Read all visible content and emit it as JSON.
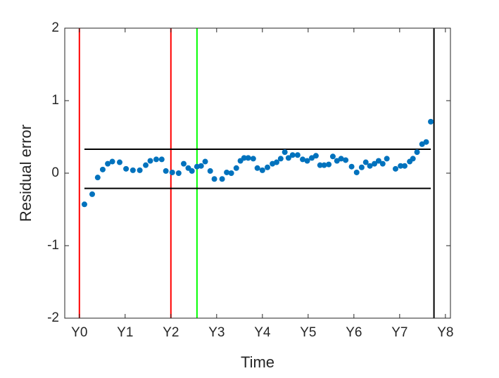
{
  "chart_data": {
    "type": "scatter",
    "xlabel": "Time",
    "ylabel": "Residual error",
    "color": "#0072bd",
    "xlim": [
      -0.32,
      8.11
    ],
    "ylim": [
      -2,
      2
    ],
    "yticks": [
      -2,
      -1,
      0,
      1,
      2
    ],
    "xticks": [
      {
        "value": 0,
        "label": "Y0"
      },
      {
        "value": 1,
        "label": "Y1"
      },
      {
        "value": 2,
        "label": "Y2"
      },
      {
        "value": 3,
        "label": "Y3"
      },
      {
        "value": 4,
        "label": "Y4"
      },
      {
        "value": 5,
        "label": "Y5"
      },
      {
        "value": 6,
        "label": "Y6"
      },
      {
        "value": 7,
        "label": "Y7"
      },
      {
        "value": 8,
        "label": "Y8"
      }
    ],
    "x": [
      0.11,
      0.28,
      0.4,
      0.51,
      0.62,
      0.72,
      0.88,
      1.02,
      1.17,
      1.32,
      1.45,
      1.55,
      1.68,
      1.8,
      1.89,
      2.03,
      2.17,
      2.28,
      2.38,
      2.46,
      2.57,
      2.66,
      2.75,
      2.86,
      2.95,
      3.12,
      3.22,
      3.32,
      3.43,
      3.52,
      3.6,
      3.69,
      3.8,
      3.89,
      4.0,
      4.11,
      4.22,
      4.31,
      4.4,
      4.49,
      4.57,
      4.66,
      4.77,
      4.88,
      4.98,
      5.08,
      5.17,
      5.26,
      5.35,
      5.45,
      5.54,
      5.63,
      5.72,
      5.82,
      5.95,
      6.06,
      6.17,
      6.26,
      6.35,
      6.45,
      6.54,
      6.63,
      6.72,
      6.91,
      7.02,
      7.11,
      7.22,
      7.29,
      7.38,
      7.49,
      7.58,
      7.68
    ],
    "values": [
      -0.43,
      -0.29,
      -0.06,
      0.05,
      0.13,
      0.16,
      0.15,
      0.06,
      0.04,
      0.04,
      0.11,
      0.17,
      0.19,
      0.19,
      0.03,
      0.01,
      0.0,
      0.13,
      0.07,
      0.03,
      0.09,
      0.1,
      0.16,
      0.03,
      -0.08,
      -0.08,
      0.01,
      0.0,
      0.07,
      0.17,
      0.21,
      0.21,
      0.2,
      0.07,
      0.04,
      0.08,
      0.13,
      0.15,
      0.2,
      0.29,
      0.21,
      0.25,
      0.25,
      0.19,
      0.17,
      0.21,
      0.24,
      0.11,
      0.11,
      0.12,
      0.23,
      0.17,
      0.2,
      0.18,
      0.09,
      0.01,
      0.08,
      0.15,
      0.1,
      0.13,
      0.17,
      0.13,
      0.2,
      0.06,
      0.1,
      0.1,
      0.16,
      0.2,
      0.29,
      0.4,
      0.43,
      0.71
    ],
    "vlines": [
      {
        "x": 0,
        "color": "#ff0000"
      },
      {
        "x": 2,
        "color": "#ff0000"
      },
      {
        "x": 2.57,
        "color": "#00ff00"
      },
      {
        "x": 7.75,
        "color": "#000000"
      }
    ],
    "hlines": [
      {
        "y": 0.33,
        "xrange": [
          0.11,
          7.68
        ],
        "color": "#000000"
      },
      {
        "y": -0.21,
        "xrange": [
          0.11,
          7.68
        ],
        "color": "#000000"
      }
    ]
  }
}
